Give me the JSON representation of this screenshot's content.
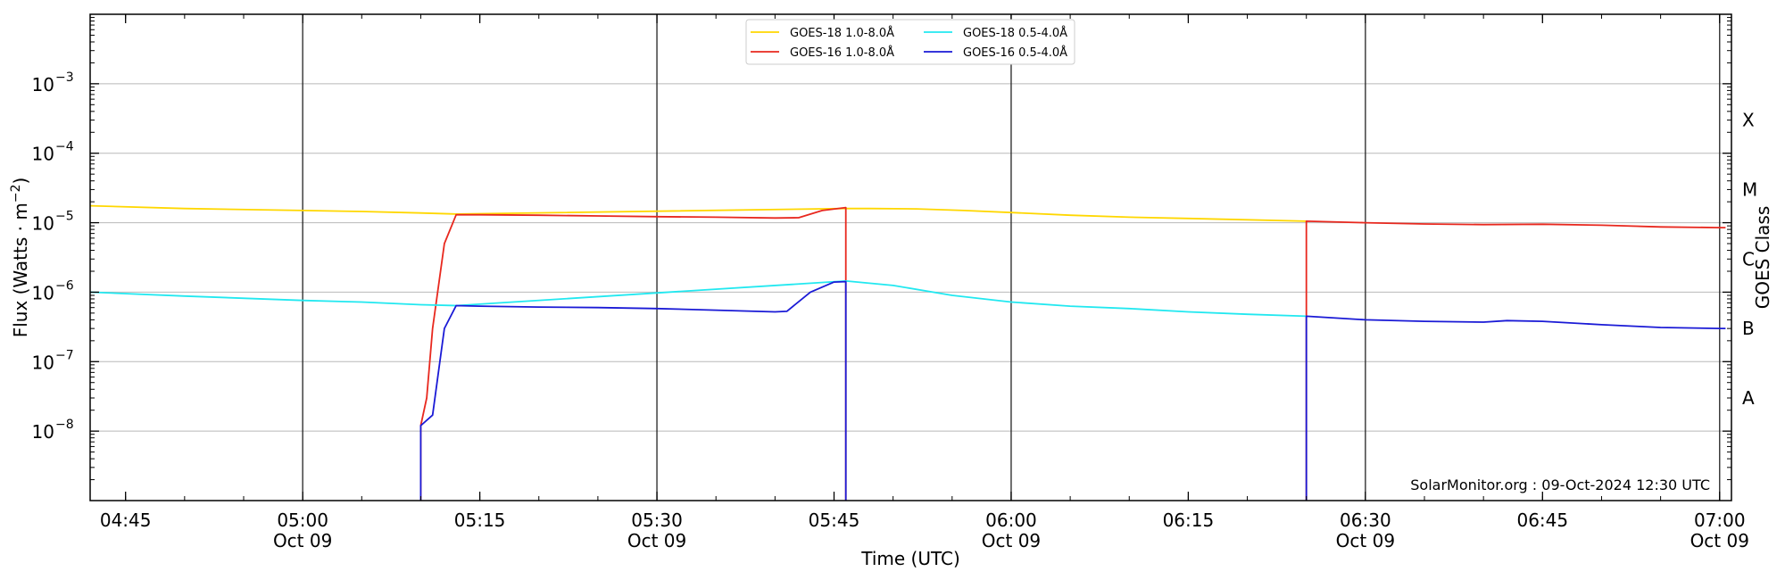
{
  "chart_data": {
    "type": "line",
    "xlabel": "Time (UTC)",
    "ylabel": "Flux (Watts · m⁻²)",
    "y2label": "GOES Class",
    "credit": "SolarMonitor.org : 09-Oct-2024 12:30 UTC",
    "y_scale": "log",
    "xlim": [
      "2024-10-09 04:42",
      "2024-10-09 07:01"
    ],
    "ylim": [
      1e-09,
      0.01
    ],
    "grid": "horizontal at y ticks",
    "legend_position": "top-center",
    "x_ticks": [
      {
        "time": "04:45",
        "line1": "04:45",
        "line2": "",
        "major": false
      },
      {
        "time": "05:00",
        "line1": "05:00",
        "line2": "Oct 09",
        "major": true
      },
      {
        "time": "05:15",
        "line1": "05:15",
        "line2": "",
        "major": false
      },
      {
        "time": "05:30",
        "line1": "05:30",
        "line2": "Oct 09",
        "major": true
      },
      {
        "time": "05:45",
        "line1": "05:45",
        "line2": "",
        "major": false
      },
      {
        "time": "06:00",
        "line1": "06:00",
        "line2": "Oct 09",
        "major": true
      },
      {
        "time": "06:15",
        "line1": "06:15",
        "line2": "",
        "major": false
      },
      {
        "time": "06:30",
        "line1": "06:30",
        "line2": "Oct 09",
        "major": true
      },
      {
        "time": "06:45",
        "line1": "06:45",
        "line2": "",
        "major": false
      },
      {
        "time": "07:00",
        "line1": "07:00",
        "line2": "Oct 09",
        "major": true
      }
    ],
    "y_ticks": [
      {
        "value": 1e-08,
        "label": "10",
        "exp": "−8"
      },
      {
        "value": 1e-07,
        "label": "10",
        "exp": "−7"
      },
      {
        "value": 1e-06,
        "label": "10",
        "exp": "−6"
      },
      {
        "value": 1e-05,
        "label": "10",
        "exp": "−5"
      },
      {
        "value": 0.0001,
        "label": "10",
        "exp": "−4"
      },
      {
        "value": 0.001,
        "label": "10",
        "exp": "−3"
      }
    ],
    "class_labels": [
      {
        "label": "A",
        "value": 3e-08
      },
      {
        "label": "B",
        "value": 3e-07
      },
      {
        "label": "C",
        "value": 3e-06
      },
      {
        "label": "M",
        "value": 3e-05
      },
      {
        "label": "X",
        "value": 0.0003
      }
    ],
    "series": [
      {
        "name": "GOES-18 1.0-8.0Å",
        "color": "#ffd700",
        "points": [
          [
            "04:42",
            1.75e-05
          ],
          [
            "04:50",
            1.6e-05
          ],
          [
            "05:00",
            1.5e-05
          ],
          [
            "05:05",
            1.45e-05
          ],
          [
            "05:10",
            1.38e-05
          ],
          [
            "05:13",
            1.33e-05
          ],
          [
            "05:46",
            1.6e-05
          ],
          [
            "05:48",
            1.6e-05
          ],
          [
            "05:52",
            1.58e-05
          ],
          [
            "05:56",
            1.5e-05
          ],
          [
            "06:00",
            1.4e-05
          ],
          [
            "06:05",
            1.28e-05
          ],
          [
            "06:10",
            1.2e-05
          ],
          [
            "06:15",
            1.15e-05
          ],
          [
            "06:20",
            1.1e-05
          ],
          [
            "06:25",
            1.05e-05
          ]
        ]
      },
      {
        "name": "GOES-16 1.0-8.0Å",
        "color": "#e8281e",
        "points": [
          [
            "05:10",
            1e-09
          ],
          [
            "05:10",
            1.2e-08
          ],
          [
            "05:10.5",
            3e-08
          ],
          [
            "05:11",
            3e-07
          ],
          [
            "05:12",
            5e-06
          ],
          [
            "05:13",
            1.3e-05
          ],
          [
            "05:15",
            1.3e-05
          ],
          [
            "05:20",
            1.28e-05
          ],
          [
            "05:25",
            1.25e-05
          ],
          [
            "05:30",
            1.22e-05
          ],
          [
            "05:35",
            1.2e-05
          ],
          [
            "05:40",
            1.17e-05
          ],
          [
            "05:42",
            1.18e-05
          ],
          [
            "05:44",
            1.5e-05
          ],
          [
            "05:46",
            1.65e-05
          ],
          [
            "05:46",
            1e-09
          ],
          null,
          [
            "06:25",
            1e-09
          ],
          [
            "06:25",
            1.05e-05
          ],
          [
            "06:30",
            1e-05
          ],
          [
            "06:35",
            9.6e-06
          ],
          [
            "06:40",
            9.4e-06
          ],
          [
            "06:45",
            9.5e-06
          ],
          [
            "06:50",
            9.2e-06
          ],
          [
            "06:55",
            8.7e-06
          ],
          [
            "07:00",
            8.5e-06
          ],
          [
            "07:00.5",
            8.5e-06
          ]
        ]
      },
      {
        "name": "GOES-18 0.5-4.0Å",
        "color": "#22e8f0",
        "points": [
          [
            "04:42",
            1e-06
          ],
          [
            "04:50",
            8.8e-07
          ],
          [
            "05:00",
            7.6e-07
          ],
          [
            "05:05",
            7.2e-07
          ],
          [
            "05:10",
            6.6e-07
          ],
          [
            "05:13",
            6.4e-07
          ],
          [
            "05:46",
            1.45e-06
          ],
          [
            "05:50",
            1.25e-06
          ],
          [
            "05:55",
            9e-07
          ],
          [
            "06:00",
            7.2e-07
          ],
          [
            "06:05",
            6.3e-07
          ],
          [
            "06:10",
            5.8e-07
          ],
          [
            "06:15",
            5.2e-07
          ],
          [
            "06:20",
            4.8e-07
          ],
          [
            "06:25",
            4.5e-07
          ]
        ]
      },
      {
        "name": "GOES-16 0.5-4.0Å",
        "color": "#1a1ad6",
        "points": [
          [
            "05:10",
            1e-09
          ],
          [
            "05:10",
            1.2e-08
          ],
          [
            "05:11",
            1.7e-08
          ],
          [
            "05:12",
            3e-07
          ],
          [
            "05:13",
            6.4e-07
          ],
          [
            "05:15",
            6.3e-07
          ],
          [
            "05:20",
            6.1e-07
          ],
          [
            "05:25",
            6e-07
          ],
          [
            "05:30",
            5.8e-07
          ],
          [
            "05:35",
            5.5e-07
          ],
          [
            "05:40",
            5.2e-07
          ],
          [
            "05:41",
            5.3e-07
          ],
          [
            "05:43",
            1e-06
          ],
          [
            "05:45",
            1.4e-06
          ],
          [
            "05:46",
            1.42e-06
          ],
          [
            "05:46",
            1e-09
          ],
          null,
          [
            "06:25",
            1e-09
          ],
          [
            "06:25",
            4.5e-07
          ],
          [
            "06:30",
            4e-07
          ],
          [
            "06:35",
            3.8e-07
          ],
          [
            "06:40",
            3.7e-07
          ],
          [
            "06:42",
            3.9e-07
          ],
          [
            "06:45",
            3.8e-07
          ],
          [
            "06:50",
            3.4e-07
          ],
          [
            "06:55",
            3.1e-07
          ],
          [
            "07:00",
            3e-07
          ],
          [
            "07:00.5",
            3e-07
          ]
        ]
      }
    ]
  }
}
